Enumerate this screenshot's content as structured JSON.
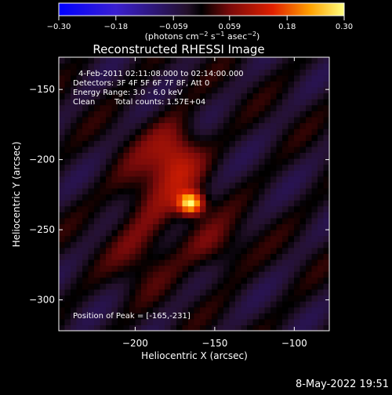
{
  "chart_data": {
    "type": "heatmap",
    "title": "Reconstructed RHESSI Image",
    "xlabel": "Heliocentric X (arcsec)",
    "ylabel": "Heliocentric Y (arcsec)",
    "xlim": [
      -248,
      -78
    ],
    "ylim": [
      -322,
      -127
    ],
    "x_ticks": [
      -200,
      -150,
      -100
    ],
    "y_ticks": [
      -150,
      -200,
      -250,
      -300
    ],
    "x_tick_labels": [
      "−200",
      "−150",
      "−100"
    ],
    "y_tick_labels": [
      "−150",
      "−200",
      "−250",
      "−300"
    ],
    "colorbar": {
      "range": [
        -0.3,
        0.3
      ],
      "ticks": [
        -0.3,
        -0.18,
        -0.059,
        0.059,
        0.18,
        0.3
      ],
      "tick_labels": [
        "−0.30",
        "−0.18",
        "−0.059",
        "0.059",
        "0.18",
        "0.30"
      ],
      "units_label": "(photons cm",
      "units_sup1": "−2",
      "units_mid": " s",
      "units_sup2": "−1",
      "units_end": " asec",
      "units_sup3": "−2",
      "units_close": ")"
    },
    "annotations": {
      "time_range": "4-Feb-2011 02:11:08.000 to 02:14:00.000",
      "detectors": "Detectors: 3F 4F 5F 6F 7F 8F, Att 0",
      "energy": "Energy Range: 3.0 - 6.0 keV",
      "algorithm": "Clean",
      "counts": "Total counts: 1.57E+04",
      "peak_position": "Position of Peak = [-165,-231]"
    },
    "peak": {
      "x": -165,
      "y": -231,
      "value": 0.3
    },
    "sources": [
      {
        "x": -165,
        "y": -231,
        "amp": 1.0,
        "sx": 5.5,
        "sy": 5.5
      },
      {
        "x": -174,
        "y": -196,
        "amp": 0.38,
        "sx": 11,
        "sy": 16
      },
      {
        "x": -188,
        "y": -222,
        "amp": 0.25,
        "sx": 16,
        "sy": 22
      },
      {
        "x": -150,
        "y": -262,
        "amp": 0.22,
        "sx": 14,
        "sy": 13
      },
      {
        "x": -197,
        "y": -268,
        "amp": 0.16,
        "sx": 13,
        "sy": 18
      }
    ]
  },
  "footer": {
    "date": "8-May-2022 19:51"
  }
}
